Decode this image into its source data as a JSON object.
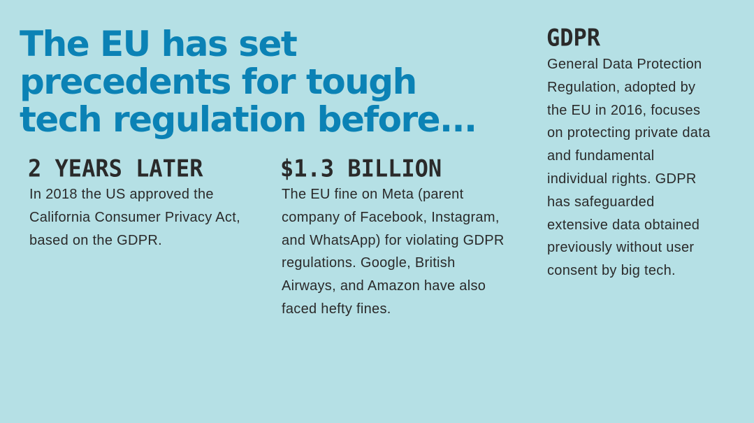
{
  "headline": "The EU has set precedents for tough tech regulation before...",
  "columns": [
    {
      "title": "2 YEARS LATER",
      "body": "In 2018 the US approved the California Consumer Privacy Act, based on the GDPR."
    },
    {
      "title": "$1.3 BILLION",
      "body": "The EU fine on Meta (parent company of Facebook, Instagram, and WhatsApp) for violating GDPR regulations. Google, British Airways, and Amazon have also faced hefty fines."
    },
    {
      "title": "GDPR",
      "body": "General Data Protection Regulation, adopted by the EU in 2016, focuses on protecting private data and fundamental individual rights. GDPR has safeguarded extensive data obtained previously without user consent by big tech."
    }
  ],
  "colors": {
    "background": "#b5e0e5",
    "headline": "#0b82b5",
    "text": "#2a2a2a"
  }
}
